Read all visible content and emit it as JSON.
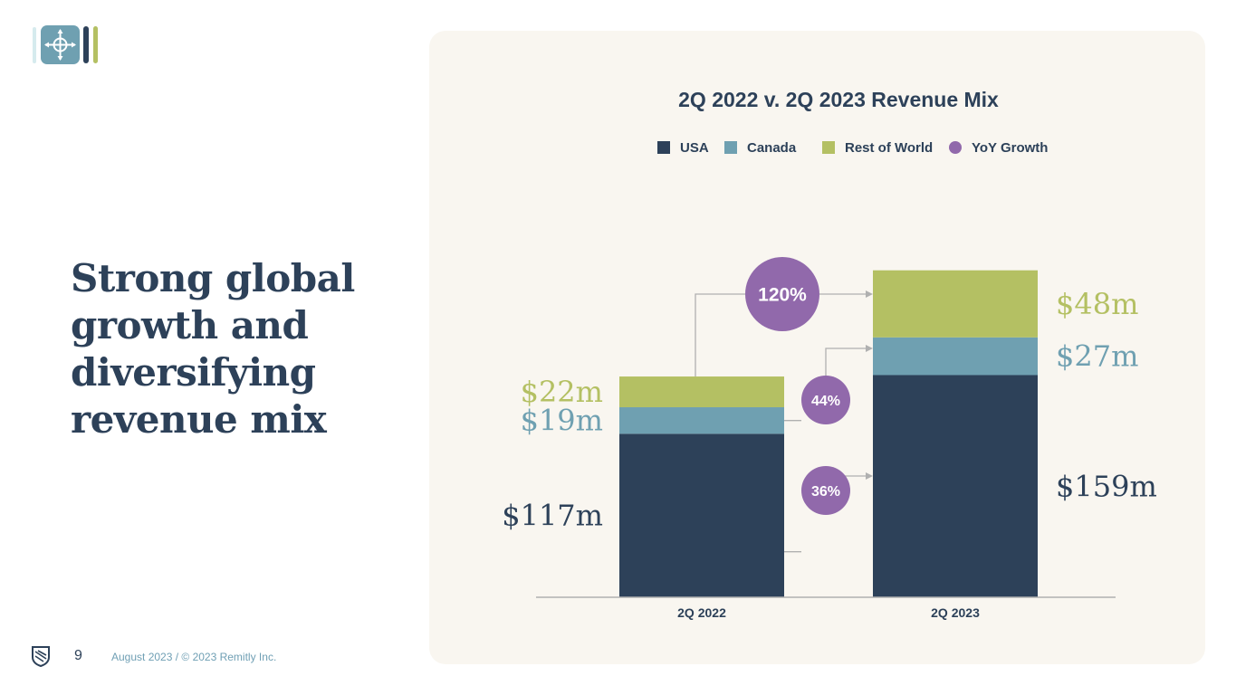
{
  "slide": {
    "headline": "Strong global growth and diversifying revenue mix",
    "page_number": "9",
    "footer_text": "August 2023 / © 2023 Remitly Inc."
  },
  "colors": {
    "usa": "#2d4159",
    "canada": "#6fa0b1",
    "rest_of_world": "#b4c063",
    "growth": "#9169ab",
    "axis": "#b0b0b0",
    "panel": "#f9f6f0"
  },
  "chart_data": {
    "type": "bar",
    "stacked": true,
    "title": "2Q 2022 v. 2Q 2023 Revenue Mix",
    "categories": [
      "2Q 2022",
      "2Q 2023"
    ],
    "series": [
      {
        "name": "USA",
        "values": [
          117,
          159
        ],
        "labels": [
          "$117m",
          "$159m"
        ],
        "color": "#2d4159"
      },
      {
        "name": "Canada",
        "values": [
          19,
          27
        ],
        "labels": [
          "$19m",
          "$27m"
        ],
        "color": "#6fa0b1"
      },
      {
        "name": "Rest of World",
        "values": [
          22,
          48
        ],
        "labels": [
          "$22m",
          "$48m"
        ],
        "color": "#b4c063"
      }
    ],
    "legend": [
      {
        "name": "USA",
        "shape": "square",
        "color": "#2d4159"
      },
      {
        "name": "Canada",
        "shape": "square",
        "color": "#6fa0b1"
      },
      {
        "name": "Rest of World",
        "shape": "square",
        "color": "#b4c063"
      },
      {
        "name": "YoY Growth",
        "shape": "circle",
        "color": "#9169ab"
      }
    ],
    "yoy_growth": [
      {
        "series": "Rest of World",
        "label": "120%"
      },
      {
        "series": "Canada",
        "label": "44%"
      },
      {
        "series": "USA",
        "label": "36%"
      }
    ],
    "ylim": [
      0,
      250
    ],
    "xlabel": "",
    "ylabel": ""
  }
}
